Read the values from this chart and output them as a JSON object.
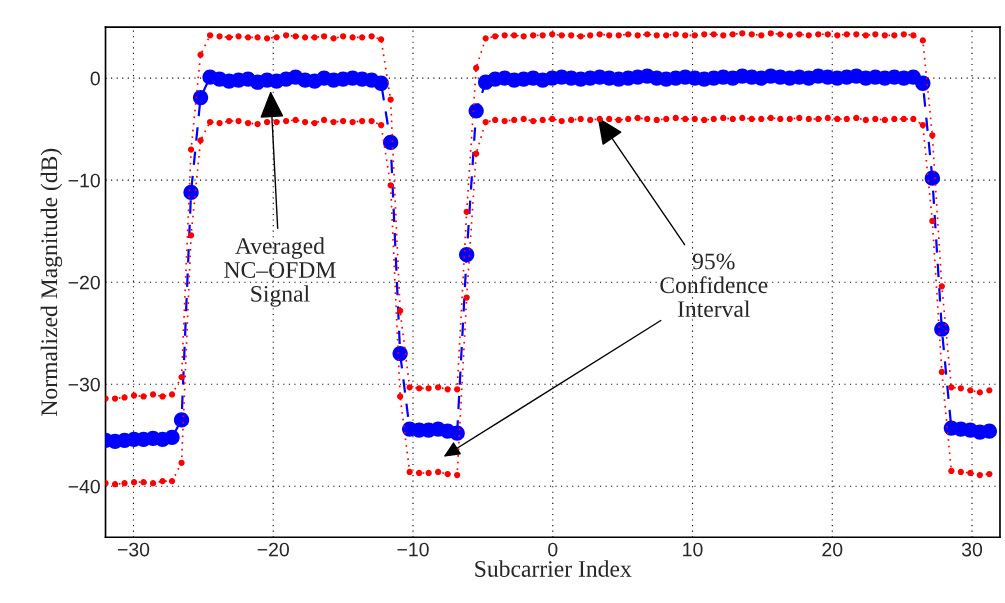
{
  "chart_data": {
    "type": "line",
    "xlabel": "Subcarrier Index",
    "ylabel": "Normalized Magnitude (dB)",
    "x": [
      -32,
      -31.32,
      -30.64,
      -29.96,
      -29.28,
      -28.6,
      -27.92,
      -27.24,
      -26.56,
      -25.88,
      -25.2,
      -24.52,
      -23.84,
      -23.16,
      -22.48,
      -21.8,
      -21.12,
      -20.44,
      -19.76,
      -19.08,
      -18.4,
      -17.72,
      -17.04,
      -16.36,
      -15.68,
      -15,
      -14.32,
      -13.64,
      -12.96,
      -12.28,
      -11.6,
      -10.92,
      -10.24,
      -9.56,
      -8.88,
      -8.2,
      -7.52,
      -6.84,
      -6.16,
      -5.48,
      -4.8,
      -4.12,
      -3.44,
      -2.76,
      -2.08,
      -1.4,
      -0.72,
      -0.04,
      0.64,
      1.32,
      2,
      2.68,
      3.36,
      4.04,
      4.72,
      5.4,
      6.08,
      6.76,
      7.44,
      8.12,
      8.8,
      9.48,
      10.16,
      10.84,
      11.52,
      12.2,
      12.88,
      13.56,
      14.24,
      14.92,
      15.6,
      16.28,
      16.96,
      17.64,
      18.32,
      19,
      19.68,
      20.36,
      21.04,
      21.72,
      22.4,
      23.08,
      23.76,
      24.44,
      25.12,
      25.8,
      26.48,
      27.16,
      27.84,
      28.52,
      29.2,
      29.88,
      30.56,
      31.24
    ],
    "series": [
      {
        "color": "#0000ff",
        "marker": "circle",
        "line_style": "dashed",
        "values": [
          -35.5,
          -35.6,
          -35.5,
          -35.4,
          -35.4,
          -35.3,
          -35.4,
          -35.2,
          -33.5,
          -11.2,
          -1.9,
          0.1,
          -0.1,
          -0.3,
          -0.2,
          -0.1,
          -0.4,
          -0.2,
          -0.3,
          -0.1,
          0.1,
          -0.2,
          -0.3,
          0,
          -0.2,
          -0.1,
          0,
          -0.1,
          -0.2,
          -0.5,
          -6.3,
          -27.0,
          -34.4,
          -34.5,
          -34.5,
          -34.4,
          -34.6,
          -34.8,
          -17.3,
          -3.2,
          -0.4,
          -0.1,
          0,
          -0.2,
          -0.1,
          0,
          -0.2,
          0,
          0.1,
          0,
          -0.1,
          0,
          0.1,
          0,
          -0.1,
          0,
          0.1,
          0.2,
          0,
          -0.1,
          0,
          0.1,
          0,
          -0.1,
          0,
          0.1,
          0,
          0.2,
          0.1,
          0,
          0.2,
          0.1,
          0,
          0.1,
          0,
          0.2,
          0.1,
          0,
          0.1,
          0.2,
          0,
          0.1,
          0,
          0.1,
          0,
          0.1,
          -0.5,
          -9.8,
          -24.6,
          -34.3,
          -34.4,
          -34.5,
          -34.7,
          -34.6
        ]
      },
      {
        "color": "#ff0000",
        "marker": "circle",
        "line_style": "dotted",
        "values": [
          -31.4,
          -31.4,
          -31.3,
          -31.1,
          -31.2,
          -31.0,
          -31.2,
          -31.0,
          -29.3,
          -7.0,
          2.3,
          4.2,
          4.1,
          4.0,
          4.1,
          4.0,
          4.0,
          3.9,
          4.0,
          4.2,
          4.1,
          4.0,
          4.0,
          4.1,
          3.9,
          4.1,
          4.0,
          4.0,
          4.1,
          3.8,
          -2.1,
          -22.8,
          -30.3,
          -30.4,
          -30.4,
          -30.3,
          -30.5,
          -30.5,
          -13.1,
          1.0,
          3.9,
          4.1,
          4.2,
          4.2,
          4.1,
          4.2,
          4.2,
          4.3,
          4.2,
          4.2,
          4.1,
          4.2,
          4.3,
          4.2,
          4.2,
          4.3,
          4.2,
          4.3,
          4.2,
          4.2,
          4.3,
          4.2,
          4.2,
          4.3,
          4.3,
          4.2,
          4.3,
          4.4,
          4.3,
          4.2,
          4.4,
          4.3,
          4.2,
          4.3,
          4.2,
          4.3,
          4.3,
          4.2,
          4.3,
          4.3,
          4.2,
          4.3,
          4.2,
          4.2,
          4.3,
          4.2,
          3.7,
          -5.6,
          -20.4,
          -30.3,
          -30.4,
          -30.6,
          -30.8,
          -30.6
        ]
      },
      {
        "color": "#ff0000",
        "marker": "circle",
        "line_style": "dotted",
        "values": [
          -39.7,
          -39.8,
          -39.7,
          -39.6,
          -39.6,
          -39.7,
          -39.5,
          -39.5,
          -37.7,
          -15.4,
          -6.1,
          -4.3,
          -4.4,
          -4.2,
          -4.2,
          -4.4,
          -4.5,
          -4.3,
          -4.3,
          -4.2,
          -4.1,
          -4.3,
          -4.4,
          -4.1,
          -4.3,
          -4.2,
          -4.3,
          -4.2,
          -4.2,
          -4.6,
          -10.5,
          -31.2,
          -38.6,
          -38.7,
          -38.7,
          -38.6,
          -38.8,
          -38.9,
          -21.5,
          -7.4,
          -4.3,
          -4.1,
          -4.2,
          -4.1,
          -4.0,
          -4.2,
          -4.1,
          -4.0,
          -4.2,
          -4.1,
          -4.0,
          -4.1,
          -4.0,
          -4.0,
          -4.1,
          -4.0,
          -3.9,
          -4.0,
          -4.1,
          -4.0,
          -3.9,
          -4.0,
          -4.0,
          -4.1,
          -4.0,
          -3.9,
          -4.0,
          -3.9,
          -4.0,
          -4.0,
          -3.9,
          -4.0,
          -4.0,
          -3.9,
          -4.0,
          -4.0,
          -3.9,
          -4.0,
          -4.0,
          -3.9,
          -4.1,
          -4.0,
          -4.1,
          -4.0,
          -4.0,
          -4.0,
          -4.6,
          -14.0,
          -28.8,
          -38.5,
          -38.6,
          -38.7,
          -38.9,
          -38.8
        ]
      }
    ],
    "xlim": [
      -32,
      32
    ],
    "xticks": [
      -30,
      -20,
      -10,
      0,
      10,
      20,
      30
    ],
    "ylim": [
      -45,
      5
    ],
    "yticks": [
      -40,
      -30,
      -20,
      -10,
      0
    ],
    "grid": true,
    "annotations": [
      {
        "text": "Averaged\nNC–OFDM\nSignal",
        "x": -20.2,
        "y": -1
      },
      {
        "text": "95%\nConfidence\nInterval",
        "x": 3.1,
        "y": -3.6
      }
    ]
  }
}
